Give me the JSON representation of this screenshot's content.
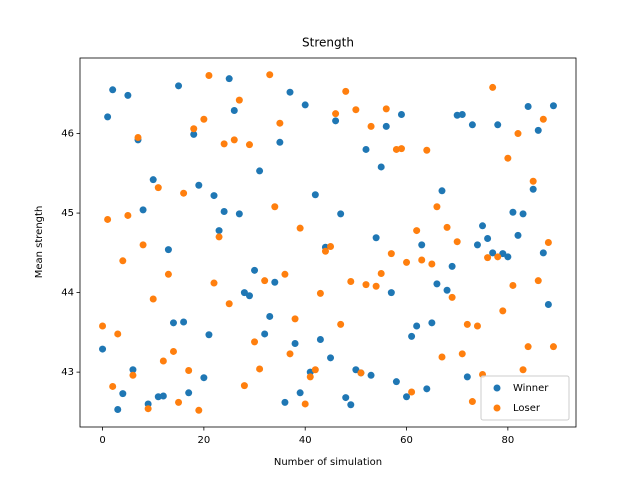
{
  "chart_data": {
    "type": "scatter",
    "title": "Strength",
    "xlabel": "Number of simulation",
    "ylabel": "Mean strength",
    "x": [
      0,
      1,
      2,
      3,
      4,
      5,
      6,
      7,
      8,
      9,
      10,
      11,
      12,
      13,
      14,
      15,
      16,
      17,
      18,
      19,
      20,
      21,
      22,
      23,
      24,
      25,
      26,
      27,
      28,
      29,
      30,
      31,
      32,
      33,
      34,
      35,
      36,
      37,
      38,
      39,
      40,
      41,
      42,
      43,
      44,
      45,
      46,
      47,
      48,
      49,
      50,
      51,
      52,
      53,
      54,
      55,
      56,
      57,
      58,
      59,
      60,
      61,
      62,
      63,
      64,
      65,
      66,
      67,
      68,
      69,
      70,
      71,
      72,
      73,
      74,
      75,
      76,
      77,
      78,
      79,
      80,
      81,
      82,
      83,
      84,
      85,
      86,
      87,
      88,
      89
    ],
    "series": [
      {
        "name": "Winner",
        "color": "#1f77b4",
        "values": [
          43.29,
          46.21,
          46.55,
          42.53,
          42.73,
          46.48,
          43.03,
          45.92,
          45.04,
          42.6,
          45.42,
          42.69,
          42.7,
          44.54,
          43.62,
          46.6,
          43.63,
          42.74,
          45.99,
          45.35,
          42.93,
          43.47,
          45.22,
          44.78,
          45.02,
          46.69,
          46.29,
          44.99,
          44.0,
          43.96,
          44.28,
          45.53,
          43.48,
          43.7,
          44.13,
          45.89,
          42.62,
          46.52,
          43.36,
          42.74,
          46.36,
          43.0,
          45.23,
          43.41,
          44.57,
          43.18,
          46.16,
          44.99,
          42.68,
          42.59,
          43.03,
          42.99,
          45.8,
          42.96,
          44.69,
          45.58,
          46.09,
          44.0,
          42.88,
          46.24,
          42.69,
          43.45,
          43.58,
          44.6,
          42.79,
          43.62,
          44.11,
          45.28,
          44.03,
          44.33,
          46.23,
          46.24,
          42.94,
          46.11,
          44.6,
          44.84,
          44.68,
          44.5,
          46.11,
          44.49,
          44.45,
          45.01,
          44.72,
          44.99,
          46.34,
          45.3,
          46.04,
          44.5,
          43.85,
          46.35
        ]
      },
      {
        "name": "Loser",
        "color": "#ff7f0e",
        "values": [
          43.58,
          44.92,
          42.82,
          43.48,
          44.4,
          44.97,
          42.96,
          45.95,
          44.6,
          42.54,
          43.92,
          45.32,
          43.14,
          44.23,
          43.26,
          42.62,
          45.25,
          43.02,
          46.06,
          42.52,
          46.18,
          46.73,
          44.12,
          44.7,
          45.87,
          43.86,
          45.92,
          46.42,
          42.83,
          45.86,
          43.38,
          43.04,
          44.15,
          46.74,
          45.08,
          46.13,
          44.23,
          43.23,
          43.67,
          44.81,
          42.6,
          42.94,
          43.03,
          43.99,
          44.52,
          44.58,
          46.25,
          43.6,
          46.53,
          44.14,
          46.3,
          42.99,
          44.1,
          46.09,
          44.08,
          44.24,
          46.31,
          44.49,
          45.8,
          45.81,
          44.38,
          42.75,
          44.78,
          44.41,
          45.79,
          44.36,
          45.08,
          43.19,
          44.82,
          43.94,
          44.64,
          43.23,
          43.6,
          42.63,
          43.58,
          42.97,
          44.44,
          46.58,
          44.45,
          43.77,
          45.69,
          44.09,
          46.0,
          43.03,
          43.32,
          45.4,
          44.15,
          46.18,
          44.63,
          43.32
        ]
      }
    ],
    "xlim": [
      -4.45,
      93.45
    ],
    "ylim": [
      42.31,
      46.95
    ],
    "xticks": [
      0,
      20,
      40,
      60,
      80
    ],
    "yticks": [
      43,
      44,
      45,
      46
    ],
    "legend": "lower right"
  }
}
